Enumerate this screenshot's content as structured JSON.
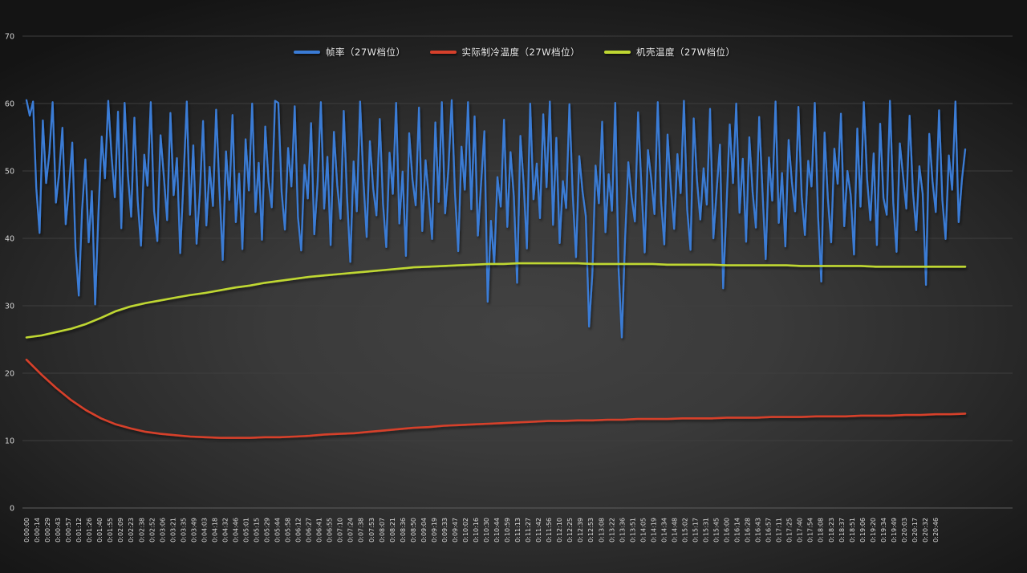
{
  "theme": {
    "background_center": "#424242",
    "background_edge": "#141414",
    "gridline_color": "#3e3e3e",
    "axis_line_color": "#5e5e5e",
    "ytick_text_color": "#d6d6d6",
    "xtick_text_color": "#dcdcdc",
    "legend_text_color": "#ececec"
  },
  "chart_data": {
    "type": "line",
    "title": "",
    "xlabel": "",
    "ylabel": "",
    "ylim": [
      0,
      70
    ],
    "yticks": [
      0,
      10,
      20,
      30,
      40,
      50,
      60,
      70
    ],
    "grid": "horizontal",
    "legend_position": "top-center",
    "x_labels": [
      "0:00:00",
      "0:00:14",
      "0:00:29",
      "0:00:43",
      "0:00:57",
      "0:01:12",
      "0:01:26",
      "0:01:40",
      "0:01:55",
      "0:02:09",
      "0:02:23",
      "0:02:38",
      "0:02:52",
      "0:03:06",
      "0:03:21",
      "0:03:35",
      "0:03:49",
      "0:04:03",
      "0:04:18",
      "0:04:32",
      "0:04:46",
      "0:05:01",
      "0:05:15",
      "0:05:29",
      "0:05:44",
      "0:05:58",
      "0:06:12",
      "0:06:27",
      "0:06:41",
      "0:06:55",
      "0:07:10",
      "0:07:24",
      "0:07:38",
      "0:07:53",
      "0:08:07",
      "0:08:21",
      "0:08:36",
      "0:08:50",
      "0:09:04",
      "0:09:19",
      "0:09:33",
      "0:09:47",
      "0:10:02",
      "0:10:16",
      "0:10:30",
      "0:10:44",
      "0:10:59",
      "0:11:13",
      "0:11:27",
      "0:11:42",
      "0:11:56",
      "0:12:10",
      "0:12:25",
      "0:12:39",
      "0:12:53",
      "0:13:08",
      "0:13:22",
      "0:13:36",
      "0:13:51",
      "0:14:05",
      "0:14:19",
      "0:14:34",
      "0:14:48",
      "0:15:02",
      "0:15:17",
      "0:15:31",
      "0:15:45",
      "0:16:00",
      "0:16:14",
      "0:16:28",
      "0:16:43",
      "0:16:57",
      "0:17:11",
      "0:17:25",
      "0:17:40",
      "0:17:54",
      "0:18:08",
      "0:18:23",
      "0:18:37",
      "0:18:51",
      "0:19:06",
      "0:19:20",
      "0:19:34",
      "0:19:49",
      "0:20:03",
      "0:20:17",
      "0:20:32",
      "0:20:46"
    ],
    "series": [
      {
        "name": "帧率（27W档位）",
        "color": "#3A7BD5",
        "stroke_width": 2.3,
        "values": [
          60.5,
          58.2,
          60.3,
          47.5,
          40.8,
          57.5,
          48.2,
          52.6,
          60.2,
          45.3,
          49.8,
          56.4,
          42.1,
          47.6,
          54.2,
          38.6,
          31.5,
          44.2,
          51.7,
          39.4,
          47.0,
          30.2,
          43.8,
          55.1,
          48.9,
          60.4,
          52.3,
          46.1,
          58.8,
          41.5,
          60.1,
          49.4,
          43.2,
          57.9,
          45.6,
          38.9,
          52.4,
          47.8,
          60.2,
          44.1,
          39.6,
          55.3,
          49.2,
          42.7,
          58.6,
          46.4,
          51.9,
          37.8,
          48.6,
          60.3,
          43.5,
          53.8,
          39.2,
          46.7,
          57.4,
          41.9,
          50.6,
          44.8,
          59.1,
          47.3,
          36.8,
          52.9,
          45.7,
          58.3,
          42.4,
          49.6,
          38.4,
          54.7,
          47.1,
          60.0,
          43.9,
          51.2,
          39.8,
          56.6,
          48.4,
          44.6,
          60.4,
          60.1,
          46.9,
          41.3,
          53.4,
          47.7,
          59.6,
          43.1,
          38.2,
          50.9,
          45.9,
          57.1,
          40.6,
          48.1,
          60.2,
          44.4,
          52.1,
          39.0,
          55.8,
          47.9,
          42.9,
          58.9,
          46.2,
          36.5,
          51.4,
          44.0,
          60.3,
          48.7,
          40.2,
          54.4,
          47.4,
          43.4,
          57.7,
          45.1,
          38.7,
          52.7,
          46.6,
          60.1,
          42.2,
          49.9,
          37.4,
          55.6,
          48.8,
          44.9,
          59.4,
          41.1,
          51.6,
          46.0,
          39.9,
          57.2,
          45.4,
          60.2,
          43.7,
          50.3,
          60.5,
          46.8,
          38.1,
          53.6,
          47.2,
          60.2,
          44.3,
          58.1,
          40.4,
          48.3,
          55.9,
          30.6,
          42.6,
          36.2,
          49.1,
          44.7,
          57.6,
          41.7,
          52.8,
          46.3,
          33.4,
          55.2,
          48.0,
          38.5,
          60.0,
          45.8,
          51.1,
          43.0,
          58.4,
          47.6,
          60.3,
          42.0,
          54.9,
          39.3,
          48.5,
          44.5,
          59.9,
          46.5,
          37.2,
          52.2,
          47.0,
          43.3,
          26.9,
          34.8,
          50.8,
          45.2,
          57.3,
          40.9,
          49.5,
          44.1,
          60.1,
          35.6,
          25.3,
          39.7,
          51.3,
          46.1,
          42.5,
          58.7,
          47.8,
          37.9,
          53.1,
          48.9,
          43.6,
          60.2,
          45.5,
          39.1,
          55.4,
          47.5,
          41.4,
          52.5,
          46.7,
          60.4,
          44.2,
          38.3,
          57.8,
          48.6,
          42.8,
          50.4,
          45.0,
          59.2,
          40.0,
          47.1,
          53.9,
          32.6,
          44.6,
          56.9,
          48.2,
          60.0,
          43.8,
          51.8,
          39.5,
          55.0,
          46.9,
          41.6,
          58.0,
          47.3,
          36.9,
          52.0,
          45.6,
          60.3,
          42.3,
          49.7,
          38.8,
          54.6,
          48.4,
          44.0,
          59.5,
          46.2,
          40.5,
          51.5,
          47.7,
          60.1,
          43.2,
          33.6,
          55.7,
          45.9,
          39.4,
          53.3,
          48.1,
          58.5,
          41.8,
          50.0,
          46.4,
          37.6,
          56.3,
          44.7,
          60.2,
          48.8,
          42.7,
          52.6,
          39.0,
          57.0,
          46.0,
          43.5,
          60.4,
          45.3,
          38.0,
          54.1,
          49.3,
          44.4,
          58.2,
          47.0,
          41.2,
          50.7,
          46.6,
          33.1,
          55.5,
          48.5,
          43.9,
          59.0,
          45.7,
          39.9,
          52.3,
          47.2,
          60.3,
          42.4,
          48.7,
          53.2
        ]
      },
      {
        "name": "实际制冷温度（27W档位）",
        "color": "#D6402B",
        "stroke_width": 2.6,
        "values": [
          22.0,
          19.8,
          17.8,
          16.0,
          14.5,
          13.3,
          12.4,
          11.8,
          11.3,
          11.0,
          10.8,
          10.6,
          10.5,
          10.4,
          10.4,
          10.4,
          10.5,
          10.5,
          10.6,
          10.7,
          10.9,
          11.0,
          11.1,
          11.3,
          11.5,
          11.7,
          11.9,
          12.0,
          12.2,
          12.3,
          12.4,
          12.5,
          12.6,
          12.7,
          12.8,
          12.9,
          12.9,
          13.0,
          13.0,
          13.1,
          13.1,
          13.2,
          13.2,
          13.2,
          13.3,
          13.3,
          13.3,
          13.4,
          13.4,
          13.4,
          13.5,
          13.5,
          13.5,
          13.6,
          13.6,
          13.6,
          13.7,
          13.7,
          13.7,
          13.8,
          13.8,
          13.9,
          13.9,
          14.0
        ]
      },
      {
        "name": "机壳温度（27W档位）",
        "color": "#BFD732",
        "stroke_width": 2.6,
        "values": [
          25.3,
          25.6,
          26.1,
          26.6,
          27.3,
          28.2,
          29.2,
          29.9,
          30.4,
          30.8,
          31.2,
          31.6,
          31.9,
          32.3,
          32.7,
          33.0,
          33.4,
          33.7,
          34.0,
          34.3,
          34.5,
          34.7,
          34.9,
          35.1,
          35.3,
          35.5,
          35.7,
          35.8,
          35.9,
          36.0,
          36.1,
          36.2,
          36.2,
          36.3,
          36.3,
          36.3,
          36.3,
          36.3,
          36.2,
          36.2,
          36.2,
          36.2,
          36.2,
          36.1,
          36.1,
          36.1,
          36.1,
          36.0,
          36.0,
          36.0,
          36.0,
          36.0,
          35.9,
          35.9,
          35.9,
          35.9,
          35.9,
          35.8,
          35.8,
          35.8,
          35.8,
          35.8,
          35.8,
          35.8
        ]
      }
    ]
  }
}
